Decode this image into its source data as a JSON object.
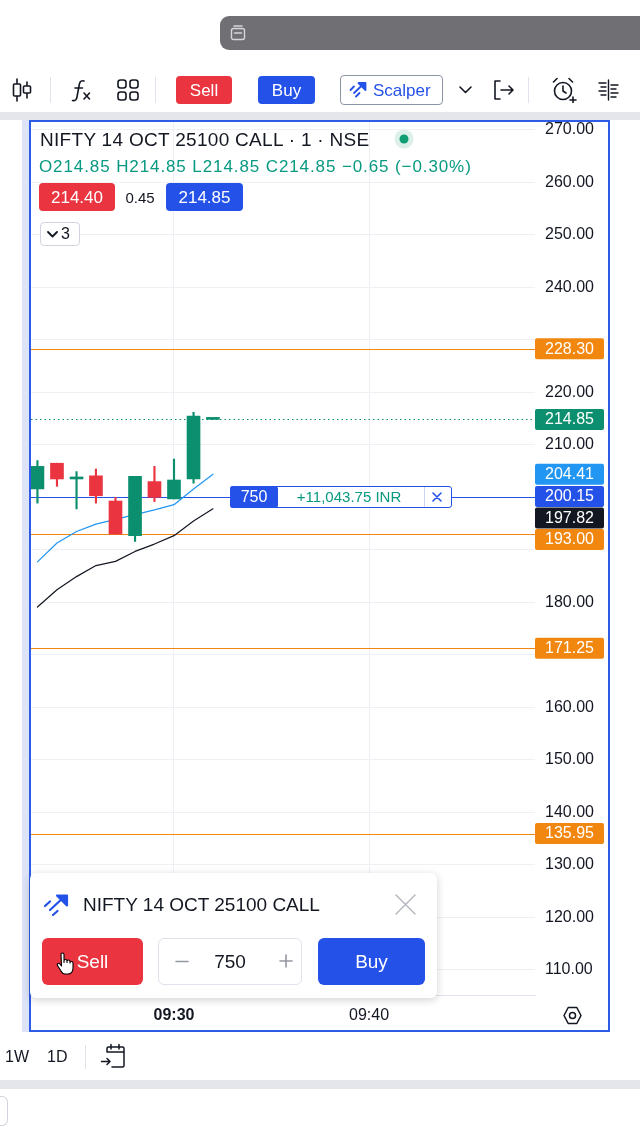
{
  "chart_data": {
    "type": "candlestick",
    "title": "NIFTY 14 OCT 25100 CALL · 1 · NSE",
    "subtitle": "O214.85 H214.85 L214.85 C214.85 −0.65 (−0.30%)",
    "x": [
      9.3833,
      9.4,
      9.4167,
      9.4333,
      9.45,
      9.4667,
      9.4833,
      9.5,
      9.5167,
      9.5333
    ],
    "ohlc": [
      [
        201.6,
        207.0,
        198.9,
        205.9
      ],
      [
        206.5,
        206.5,
        202.1,
        203.5
      ],
      [
        203.5,
        204.9,
        197.8,
        203.5
      ],
      [
        204.1,
        205.4,
        198.9,
        200.3
      ],
      [
        199.3,
        200.0,
        193.0,
        193.0
      ],
      [
        192.7,
        204.0,
        191.6,
        204.0
      ],
      [
        203.0,
        205.9,
        199.2,
        200.0
      ],
      [
        199.7,
        207.3,
        199.7,
        203.3
      ],
      [
        203.5,
        216.2,
        202.7,
        215.5
      ],
      [
        214.85,
        214.85,
        214.85,
        214.85
      ]
    ],
    "colors": [
      "#0b8f6e",
      "#ea3440",
      "#0b8f6e",
      "#ea3440",
      "#ea3440",
      "#0b8f6e",
      "#ea3440",
      "#0b8f6e",
      "#0b8f6e",
      "#0b8f6e"
    ],
    "series": [
      {
        "type": "line",
        "color": "#2196f3",
        "values": [
          187.7,
          191.3,
          193.5,
          194.9,
          null,
          null,
          197.6,
          198.6,
          201.6,
          204.41
        ]
      },
      {
        "type": "line",
        "color": "#131722",
        "values": [
          179.1,
          182.4,
          184.9,
          187.0,
          187.8,
          189.7,
          191.1,
          192.7,
          195.5,
          197.82
        ]
      }
    ],
    "xlim": [
      9.3778,
      9.8085
    ],
    "xticks": [
      {
        "value": 9.5,
        "label": "09:30"
      },
      {
        "value": 9.6667,
        "label": "09:40"
      }
    ],
    "ylim": [
      105.2,
      271.5
    ],
    "yticks": [
      {
        "value": 110,
        "label": "110.00"
      },
      {
        "value": 120,
        "label": "120.00"
      },
      {
        "value": 130,
        "label": "130.00"
      },
      {
        "value": 140,
        "label": "140.00"
      },
      {
        "value": 150,
        "label": "150.00"
      },
      {
        "value": 160,
        "label": "160.00"
      },
      {
        "value": 170,
        "label": null
      },
      {
        "value": 180,
        "label": "180.00"
      },
      {
        "value": 190,
        "label": null
      },
      {
        "value": 200,
        "label": null
      },
      {
        "value": 210,
        "label": "210.00"
      },
      {
        "value": 220,
        "label": "220.00"
      },
      {
        "value": 230,
        "label": null
      },
      {
        "value": 240,
        "label": "240.00"
      },
      {
        "value": 250,
        "label": "250.00"
      },
      {
        "value": 260,
        "label": "260.00"
      },
      {
        "value": 270,
        "label": "270.00"
      }
    ],
    "grid": true,
    "ref_lines": [
      {
        "axis": "y",
        "value": 228.3,
        "label": "228.30",
        "color": "#f2870f"
      },
      {
        "axis": "y",
        "value": 214.85,
        "label": "214.85",
        "color": "#0b8f6e",
        "line_style": "dotted"
      },
      {
        "axis": "y",
        "value": 200.15,
        "label": "200.15",
        "color": "#2451e8"
      },
      {
        "axis": "y",
        "value": 193.0,
        "label": "193.00",
        "color": "#f2870f"
      },
      {
        "axis": "y",
        "value": 171.25,
        "label": "171.25",
        "color": "#f2870f"
      },
      {
        "axis": "y",
        "value": 135.95,
        "label": "135.95",
        "color": "#f2870f"
      }
    ],
    "annotations": [
      "214.40",
      "0.45",
      "214.85",
      "3",
      {
        "text": "750",
        "x": 9.5684,
        "y": 200.15
      },
      {
        "text": "+11,043.75 INR",
        "x": 9.6496,
        "y": 200.15
      },
      "Sell",
      "Buy",
      "Scalper",
      "NIFTY 14 OCT 25100 CALL",
      "Sell",
      "750",
      "Buy",
      "1W",
      "1D",
      "204.41",
      "197.82"
    ]
  }
}
